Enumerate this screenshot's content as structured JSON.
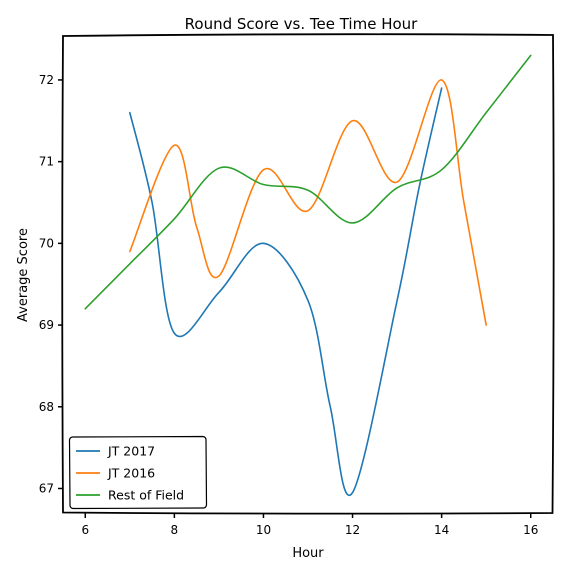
{
  "chart_data": {
    "type": "line",
    "title": "Round Score vs. Tee Time Hour",
    "xlabel": "Hour",
    "ylabel": "Average Score",
    "xlim": [
      5.5,
      16.5
    ],
    "ylim": [
      66.7,
      72.55
    ],
    "xticks": [
      6,
      8,
      10,
      12,
      14,
      16
    ],
    "yticks": [
      67,
      68,
      69,
      70,
      71,
      72
    ],
    "legend_position": "bottom-left",
    "grid": false,
    "series": [
      {
        "name": "JT 2017",
        "color": "#1f77b4",
        "x": [
          7,
          7.5,
          8,
          9,
          10,
          11,
          11.5,
          12,
          13,
          13.5,
          14
        ],
        "y": [
          71.6,
          70.5,
          68.9,
          69.4,
          70.0,
          69.3,
          68.0,
          66.95,
          69.3,
          70.7,
          71.9
        ]
      },
      {
        "name": "JT 2016",
        "color": "#ff7f0e",
        "x": [
          7,
          8,
          8.5,
          9,
          10,
          11,
          12,
          13,
          14,
          14.5,
          15
        ],
        "y": [
          69.9,
          71.2,
          70.2,
          69.6,
          70.9,
          70.4,
          71.5,
          70.75,
          72.0,
          70.5,
          69.0
        ]
      },
      {
        "name": "Rest of Field",
        "color": "#2ca02c",
        "x": [
          6,
          7,
          8,
          9,
          10,
          11,
          12,
          13,
          14,
          15,
          16
        ],
        "y": [
          69.2,
          69.75,
          70.3,
          70.92,
          70.72,
          70.65,
          70.25,
          70.68,
          70.9,
          71.6,
          72.3
        ]
      }
    ]
  }
}
